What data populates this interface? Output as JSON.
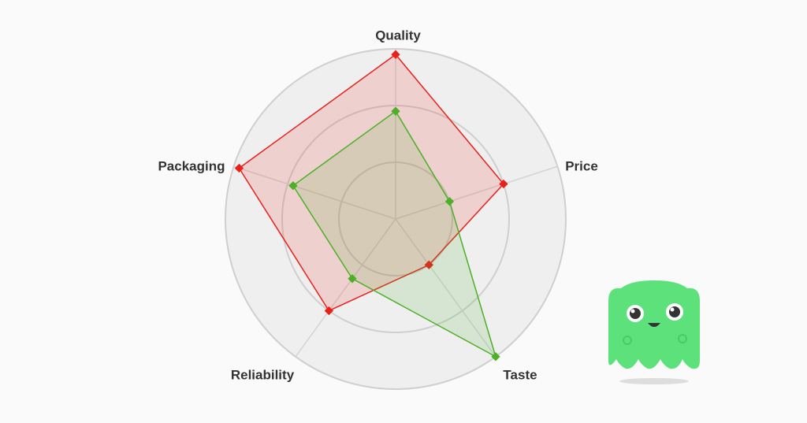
{
  "chart_data": {
    "type": "radar",
    "categories": [
      "Quality",
      "Price",
      "Taste",
      "Reliability",
      "Packaging"
    ],
    "rlim": [
      0,
      3
    ],
    "rticks": [
      1,
      2,
      3
    ],
    "series": [
      {
        "color": "#e8211b",
        "values": [
          2.9,
          2.0,
          1.0,
          2.0,
          2.9
        ]
      },
      {
        "color": "#4caf26",
        "values": [
          1.9,
          1.0,
          3.0,
          1.3,
          1.9
        ]
      }
    ]
  }
}
